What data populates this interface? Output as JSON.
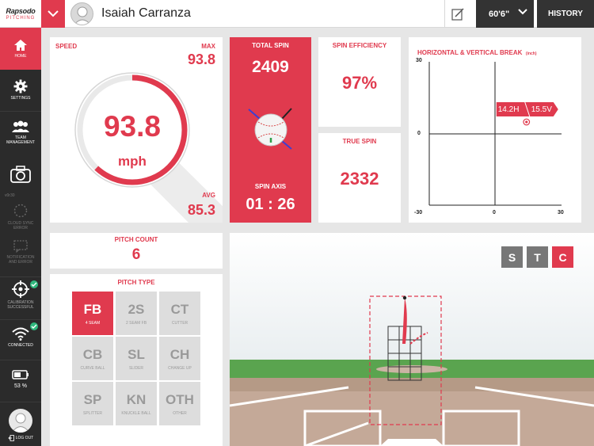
{
  "header": {
    "logo_main": "Rapsodo",
    "logo_sub": "PITCHING",
    "player_name": "Isaiah Carranza",
    "distance": "60'6\"",
    "history_label": "HISTORY"
  },
  "sidebar": {
    "home": "HOME",
    "settings": "SETTINGS",
    "team": "TEAM MANAGEMENT",
    "version": "v0r30",
    "cloud": "CLOUD SYNC ERROR",
    "notification": "NOTIFICATION AND ERROR",
    "calibration": "CALIBRATION SUCCESSFUL",
    "connected": "CONNECTED",
    "battery": "53 %",
    "logout": "LOG OUT"
  },
  "speed": {
    "label": "SPEED",
    "max_label": "MAX",
    "max_value": "93.8",
    "value": "93.8",
    "unit": "mph",
    "avg_label": "AVG",
    "avg_value": "85.3",
    "gauge_fraction": 0.62
  },
  "total_spin": {
    "label": "TOTAL SPIN",
    "value": "2409"
  },
  "spin_axis": {
    "label": "SPIN AXIS",
    "value": "01 : 26"
  },
  "spin_efficiency": {
    "label": "SPIN EFFICIENCY",
    "value": "97%"
  },
  "true_spin": {
    "label": "TRUE SPIN",
    "value": "2332"
  },
  "break": {
    "title": "HORIZONTAL & VERTICAL BREAK",
    "unit": "(inch)",
    "y_top": "30",
    "y_mid": "0",
    "y_bottom": "-30",
    "x_mid": "0",
    "x_right": "30",
    "h_label": "14.2H",
    "v_label": "15.5V",
    "point": {
      "h": 14.2,
      "v": 15.5
    }
  },
  "pitch_count": {
    "label": "PITCH COUNT",
    "value": "6"
  },
  "pitch_type": {
    "label": "PITCH TYPE",
    "items": [
      {
        "code": "FB",
        "name": "4 SEAM"
      },
      {
        "code": "2S",
        "name": "2 SEAM FB"
      },
      {
        "code": "CT",
        "name": "CUTTER"
      },
      {
        "code": "CB",
        "name": "CURVE BALL"
      },
      {
        "code": "SL",
        "name": "SLIDER"
      },
      {
        "code": "CH",
        "name": "CHANGE UP"
      },
      {
        "code": "SP",
        "name": "SPLITTER"
      },
      {
        "code": "KN",
        "name": "KNUCKLE BALL"
      },
      {
        "code": "OTH",
        "name": "OTHER"
      }
    ]
  },
  "view": {
    "s": "S",
    "t": "T",
    "c": "C"
  },
  "colors": {
    "accent": "#e03a4e",
    "dark": "#333333",
    "grass": "#5aa44f"
  }
}
